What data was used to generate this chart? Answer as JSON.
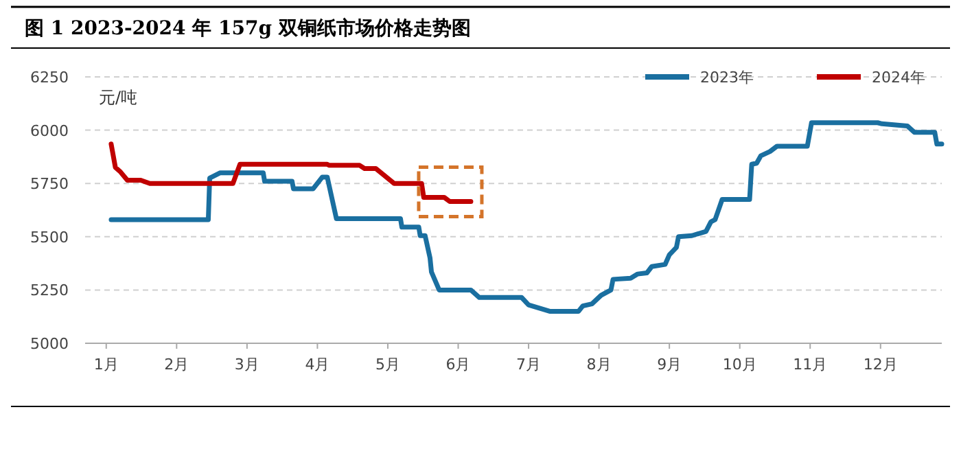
{
  "chart_data": {
    "type": "line",
    "title": "图 1 2023-2024 年 157g 双铜纸市场价格走势图",
    "ylabel": "元/吨",
    "xlim": [
      0.7,
      12.87
    ],
    "xticks": [
      {
        "value": 1,
        "label": "1月"
      },
      {
        "value": 2,
        "label": "2月"
      },
      {
        "value": 3,
        "label": "3月"
      },
      {
        "value": 4,
        "label": "4月"
      },
      {
        "value": 5,
        "label": "5月"
      },
      {
        "value": 6,
        "label": "6月"
      },
      {
        "value": 7,
        "label": "7月"
      },
      {
        "value": 8,
        "label": "8月"
      },
      {
        "value": 9,
        "label": "9月"
      },
      {
        "value": 10,
        "label": "10月"
      },
      {
        "value": 11,
        "label": "11月"
      },
      {
        "value": 12,
        "label": "12月"
      }
    ],
    "ylim": [
      5000,
      6250
    ],
    "yticks": [
      5000,
      5250,
      5500,
      5750,
      6000,
      6250
    ],
    "grid": "y",
    "legend": "top right",
    "marker": "none",
    "line_style": "solid",
    "series": [
      {
        "name": "2023年",
        "color": "#1a6fa0",
        "x": [
          1.07,
          2.45,
          2.47,
          2.62,
          3.23,
          3.25,
          3.64,
          3.66,
          3.94,
          4.07,
          4.14,
          4.27,
          5.18,
          5.2,
          5.44,
          5.46,
          5.53,
          5.6,
          5.62,
          5.73,
          6.18,
          6.3,
          6.9,
          7.0,
          7.3,
          7.71,
          7.77,
          7.9,
          8.03,
          8.17,
          8.2,
          8.45,
          8.55,
          8.68,
          8.75,
          8.94,
          9.0,
          9.1,
          9.13,
          9.32,
          9.52,
          9.59,
          9.65,
          9.75,
          10.14,
          10.17,
          10.24,
          10.3,
          10.43,
          10.53,
          10.96,
          11.02,
          11.96,
          12.02,
          12.38,
          12.48,
          12.77,
          12.8,
          12.87
        ],
        "values": [
          5580,
          5580,
          5775,
          5800,
          5800,
          5760,
          5760,
          5725,
          5725,
          5780,
          5780,
          5585,
          5585,
          5545,
          5545,
          5505,
          5505,
          5400,
          5335,
          5250,
          5250,
          5215,
          5215,
          5180,
          5150,
          5150,
          5175,
          5185,
          5225,
          5250,
          5300,
          5305,
          5325,
          5330,
          5360,
          5370,
          5415,
          5450,
          5500,
          5505,
          5525,
          5570,
          5580,
          5675,
          5675,
          5840,
          5845,
          5880,
          5900,
          5925,
          5925,
          6035,
          6035,
          6030,
          6020,
          5990,
          5990,
          5935,
          5935
        ]
      },
      {
        "name": "2024年",
        "color": "#c00000",
        "x": [
          1.07,
          1.13,
          1.2,
          1.3,
          1.49,
          1.62,
          2.8,
          2.9,
          4.14,
          4.17,
          4.6,
          4.67,
          4.83,
          5.09,
          5.48,
          5.51,
          5.8,
          5.88,
          6.18
        ],
        "values": [
          5935,
          5825,
          5805,
          5765,
          5765,
          5750,
          5750,
          5840,
          5840,
          5835,
          5835,
          5820,
          5820,
          5750,
          5750,
          5685,
          5685,
          5665,
          5665
        ]
      }
    ]
  }
}
